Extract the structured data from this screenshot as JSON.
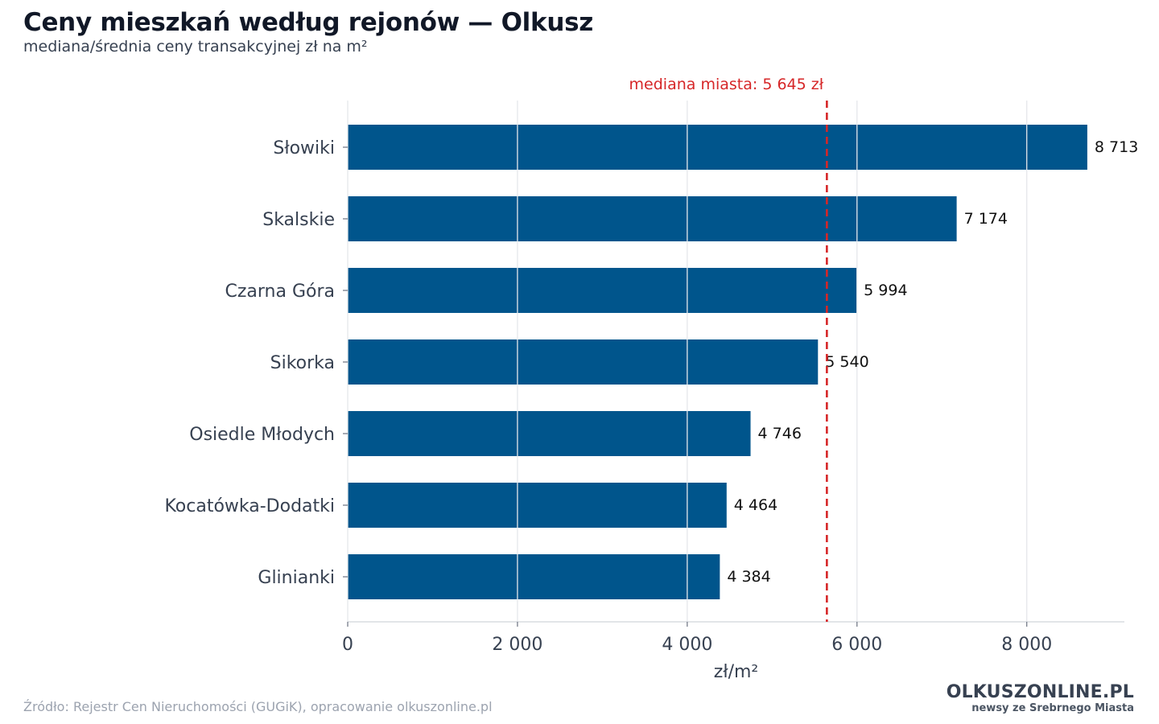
{
  "header": {
    "title": "Ceny mieszkań według rejonów — Olkusz",
    "subtitle": "mediana/średnia ceny transakcyjnej zł na m²"
  },
  "footer": {
    "source": "Źródło: Rejestr Cen Nieruchomości (GUGiK), opracowanie olkuszonline.pl",
    "logo_main": "OLKUSZONLINE.PL",
    "logo_tagline": "newsy ze Srebrnego Miasta"
  },
  "chart_data": {
    "type": "bar",
    "orientation": "horizontal",
    "title": "Ceny mieszkań według rejonów — Olkusz",
    "subtitle": "mediana/średnia ceny transakcyjnej zł na m²",
    "xlabel": "zł/m²",
    "ylabel": "",
    "xlim": [
      0,
      9150
    ],
    "xticks": [
      0,
      2000,
      4000,
      6000,
      8000
    ],
    "xtick_labels": [
      "0",
      "2 000",
      "4 000",
      "6 000",
      "8 000"
    ],
    "grid": "vertical",
    "categories": [
      "Słowiki",
      "Skalskie",
      "Czarna Góra",
      "Sikorka",
      "Osiedle Młodych",
      "Kocatówka-Dodatki",
      "Glinianki"
    ],
    "values": [
      8713,
      7174,
      5994,
      5540,
      4746,
      4464,
      4384
    ],
    "value_labels": [
      "8 713",
      "7 174",
      "5 994",
      "5 540",
      "4 746",
      "4 464",
      "4 384"
    ],
    "bar_color": "#00558c",
    "reference_line": {
      "value": 5645,
      "label": "mediana miasta: 5 645 zł",
      "color": "#d62728",
      "style": "dashed"
    }
  }
}
